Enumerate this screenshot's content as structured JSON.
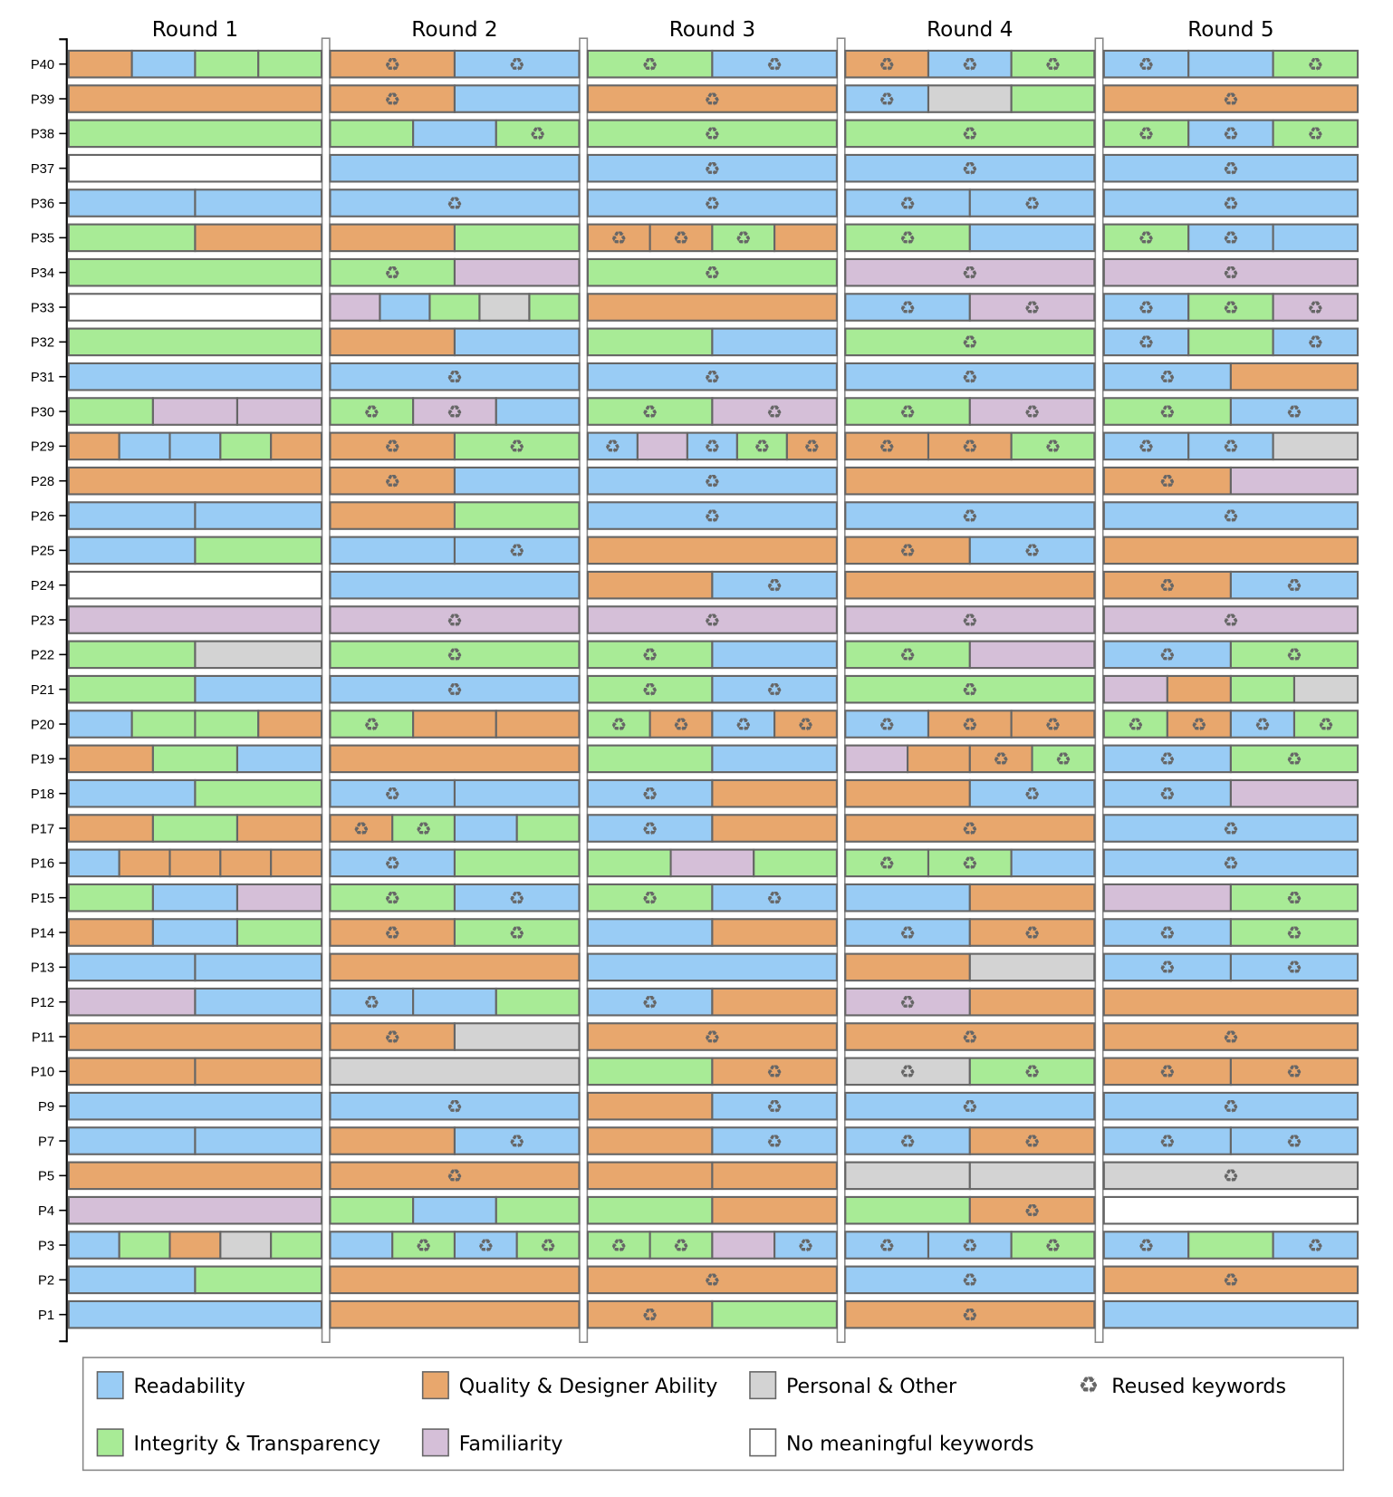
{
  "chart_data": {
    "type": "segmented-bar-grid",
    "rounds": [
      "Round 1",
      "Round 2",
      "Round 3",
      "Round 4",
      "Round 5"
    ],
    "categories": {
      "R": {
        "label": "Readability",
        "color": "#99ccf5"
      },
      "Q": {
        "label": "Quality & Designer Ability",
        "color": "#e8a76d"
      },
      "P": {
        "label": "Personal & Other",
        "color": "#d3d3d3"
      },
      "I": {
        "label": "Integrity & Transparency",
        "color": "#a8eb96"
      },
      "F": {
        "label": "Familiarity",
        "color": "#d5bfd8"
      },
      "N": {
        "label": "No meaningful keywords",
        "color": "#ffffff"
      }
    },
    "reused_label": "Reused keywords",
    "reused_icon": "recycle-icon",
    "legend_order": [
      "R",
      "Q",
      "P",
      "reused",
      "I",
      "F",
      "N"
    ],
    "participants": [
      {
        "id": "P40",
        "rounds": [
          [
            "Q",
            "R",
            "I",
            "I"
          ],
          [
            "Q*",
            "R*"
          ],
          [
            "I*",
            "R*"
          ],
          [
            "Q*",
            "R*",
            "I*"
          ],
          [
            "R*",
            "R",
            "I*"
          ]
        ]
      },
      {
        "id": "P39",
        "rounds": [
          [
            "Q"
          ],
          [
            "Q*",
            "R"
          ],
          [
            "Q*"
          ],
          [
            "R*",
            "P",
            "I"
          ],
          [
            "Q*"
          ]
        ]
      },
      {
        "id": "P38",
        "rounds": [
          [
            "I"
          ],
          [
            "I",
            "R",
            "I*"
          ],
          [
            "I*"
          ],
          [
            "I*"
          ],
          [
            "I*",
            "R*",
            "I*"
          ]
        ]
      },
      {
        "id": "P37",
        "rounds": [
          [
            "N"
          ],
          [
            "R"
          ],
          [
            "R*"
          ],
          [
            "R*"
          ],
          [
            "R*"
          ]
        ]
      },
      {
        "id": "P36",
        "rounds": [
          [
            "R",
            "R"
          ],
          [
            "R*"
          ],
          [
            "R*"
          ],
          [
            "R*",
            "R*"
          ],
          [
            "R*"
          ]
        ]
      },
      {
        "id": "P35",
        "rounds": [
          [
            "I",
            "Q"
          ],
          [
            "Q",
            "I"
          ],
          [
            "Q*",
            "Q*",
            "I*",
            "Q"
          ],
          [
            "I*",
            "R"
          ],
          [
            "I*",
            "R*",
            "R"
          ]
        ]
      },
      {
        "id": "P34",
        "rounds": [
          [
            "I"
          ],
          [
            "I*",
            "F"
          ],
          [
            "I*"
          ],
          [
            "F*"
          ],
          [
            "F*"
          ]
        ]
      },
      {
        "id": "P33",
        "rounds": [
          [
            "N"
          ],
          [
            "F",
            "R",
            "I",
            "P",
            "I"
          ],
          [
            "Q"
          ],
          [
            "R*",
            "F*"
          ],
          [
            "R*",
            "I*",
            "F*"
          ]
        ]
      },
      {
        "id": "P32",
        "rounds": [
          [
            "I"
          ],
          [
            "Q",
            "R"
          ],
          [
            "I",
            "R"
          ],
          [
            "I*"
          ],
          [
            "R*",
            "I",
            "R*"
          ]
        ]
      },
      {
        "id": "P31",
        "rounds": [
          [
            "R"
          ],
          [
            "R*"
          ],
          [
            "R*"
          ],
          [
            "R*"
          ],
          [
            "R*",
            "Q"
          ]
        ]
      },
      {
        "id": "P30",
        "rounds": [
          [
            "I",
            "F",
            "F"
          ],
          [
            "I*",
            "F*",
            "R"
          ],
          [
            "I*",
            "F*"
          ],
          [
            "I*",
            "F*"
          ],
          [
            "I*",
            "R*"
          ]
        ]
      },
      {
        "id": "P29",
        "rounds": [
          [
            "Q",
            "R",
            "R",
            "I",
            "Q"
          ],
          [
            "Q*",
            "I*"
          ],
          [
            "R*",
            "F",
            "R*",
            "I*",
            "Q*"
          ],
          [
            "Q*",
            "Q*",
            "I*"
          ],
          [
            "R*",
            "R*",
            "P"
          ]
        ]
      },
      {
        "id": "P28",
        "rounds": [
          [
            "Q"
          ],
          [
            "Q*",
            "R"
          ],
          [
            "R*"
          ],
          [
            "Q"
          ],
          [
            "Q*",
            "F"
          ]
        ]
      },
      {
        "id": "P26",
        "rounds": [
          [
            "R",
            "R"
          ],
          [
            "Q",
            "I"
          ],
          [
            "R*"
          ],
          [
            "R*"
          ],
          [
            "R*"
          ]
        ]
      },
      {
        "id": "P25",
        "rounds": [
          [
            "R",
            "I"
          ],
          [
            "R",
            "R*"
          ],
          [
            "Q"
          ],
          [
            "Q*",
            "R*"
          ],
          [
            "Q"
          ]
        ]
      },
      {
        "id": "P24",
        "rounds": [
          [
            "N"
          ],
          [
            "R"
          ],
          [
            "Q",
            "R*"
          ],
          [
            "Q"
          ],
          [
            "Q*",
            "R*"
          ]
        ]
      },
      {
        "id": "P23",
        "rounds": [
          [
            "F"
          ],
          [
            "F*"
          ],
          [
            "F*"
          ],
          [
            "F*"
          ],
          [
            "F*"
          ]
        ]
      },
      {
        "id": "P22",
        "rounds": [
          [
            "I",
            "P"
          ],
          [
            "I*"
          ],
          [
            "I*",
            "R"
          ],
          [
            "I*",
            "F"
          ],
          [
            "R*",
            "I*"
          ]
        ]
      },
      {
        "id": "P21",
        "rounds": [
          [
            "I",
            "R"
          ],
          [
            "R*"
          ],
          [
            "I*",
            "R*"
          ],
          [
            "I*"
          ],
          [
            "F",
            "Q",
            "I",
            "P"
          ]
        ]
      },
      {
        "id": "P20",
        "rounds": [
          [
            "R",
            "I",
            "I",
            "Q"
          ],
          [
            "I*",
            "Q",
            "Q"
          ],
          [
            "I*",
            "Q*",
            "R*",
            "Q*"
          ],
          [
            "R*",
            "Q*",
            "Q*"
          ],
          [
            "I*",
            "Q*",
            "R*",
            "I*"
          ]
        ]
      },
      {
        "id": "P19",
        "rounds": [
          [
            "Q",
            "I",
            "R"
          ],
          [
            "Q"
          ],
          [
            "I",
            "R"
          ],
          [
            "F",
            "Q",
            "Q*",
            "I*"
          ],
          [
            "R*",
            "I*"
          ]
        ]
      },
      {
        "id": "P18",
        "rounds": [
          [
            "R",
            "I"
          ],
          [
            "R*",
            "R"
          ],
          [
            "R*",
            "Q"
          ],
          [
            "Q",
            "R*"
          ],
          [
            "R*",
            "F"
          ]
        ]
      },
      {
        "id": "P17",
        "rounds": [
          [
            "Q",
            "I",
            "Q"
          ],
          [
            "Q*",
            "I*",
            "R",
            "I"
          ],
          [
            "R*",
            "Q"
          ],
          [
            "Q*"
          ],
          [
            "R*"
          ]
        ]
      },
      {
        "id": "P16",
        "rounds": [
          [
            "R",
            "Q",
            "Q",
            "Q",
            "Q"
          ],
          [
            "R*",
            "I"
          ],
          [
            "I",
            "F",
            "I"
          ],
          [
            "I*",
            "I*",
            "R"
          ],
          [
            "R*"
          ]
        ]
      },
      {
        "id": "P15",
        "rounds": [
          [
            "I",
            "R",
            "F"
          ],
          [
            "I*",
            "R*"
          ],
          [
            "I*",
            "R*"
          ],
          [
            "R",
            "Q"
          ],
          [
            "F",
            "I*"
          ]
        ]
      },
      {
        "id": "P14",
        "rounds": [
          [
            "Q",
            "R",
            "I"
          ],
          [
            "Q*",
            "I*"
          ],
          [
            "R",
            "Q"
          ],
          [
            "R*",
            "Q*"
          ],
          [
            "R*",
            "I*"
          ]
        ]
      },
      {
        "id": "P13",
        "rounds": [
          [
            "R",
            "R"
          ],
          [
            "Q"
          ],
          [
            "R"
          ],
          [
            "Q",
            "P"
          ],
          [
            "R*",
            "R*"
          ]
        ]
      },
      {
        "id": "P12",
        "rounds": [
          [
            "F",
            "R"
          ],
          [
            "R*",
            "R",
            "I"
          ],
          [
            "R*",
            "Q"
          ],
          [
            "F*",
            "Q"
          ],
          [
            "Q"
          ]
        ]
      },
      {
        "id": "P11",
        "rounds": [
          [
            "Q"
          ],
          [
            "Q*",
            "P"
          ],
          [
            "Q*"
          ],
          [
            "Q*"
          ],
          [
            "Q*"
          ]
        ]
      },
      {
        "id": "P10",
        "rounds": [
          [
            "Q",
            "Q"
          ],
          [
            "P"
          ],
          [
            "I",
            "Q*"
          ],
          [
            "P*",
            "I*"
          ],
          [
            "Q*",
            "Q*"
          ]
        ]
      },
      {
        "id": "P9",
        "rounds": [
          [
            "R"
          ],
          [
            "R*"
          ],
          [
            "Q",
            "R*"
          ],
          [
            "R*"
          ],
          [
            "R*"
          ]
        ]
      },
      {
        "id": "P7",
        "rounds": [
          [
            "R",
            "R"
          ],
          [
            "Q",
            "R*"
          ],
          [
            "Q",
            "R*"
          ],
          [
            "R*",
            "Q*"
          ],
          [
            "R*",
            "R*"
          ]
        ]
      },
      {
        "id": "P5",
        "rounds": [
          [
            "Q"
          ],
          [
            "Q*"
          ],
          [
            "Q",
            "Q"
          ],
          [
            "P",
            "P"
          ],
          [
            "P*"
          ]
        ]
      },
      {
        "id": "P4",
        "rounds": [
          [
            "F"
          ],
          [
            "I",
            "R",
            "I"
          ],
          [
            "I",
            "Q"
          ],
          [
            "I",
            "Q*"
          ],
          [
            "N"
          ]
        ]
      },
      {
        "id": "P3",
        "rounds": [
          [
            "R",
            "I",
            "Q",
            "P",
            "I"
          ],
          [
            "R",
            "I*",
            "R*",
            "I*"
          ],
          [
            "I*",
            "I*",
            "F",
            "R*"
          ],
          [
            "R*",
            "R*",
            "I*"
          ],
          [
            "R*",
            "I",
            "R*"
          ]
        ]
      },
      {
        "id": "P2",
        "rounds": [
          [
            "R",
            "I"
          ],
          [
            "Q"
          ],
          [
            "Q*"
          ],
          [
            "R*"
          ],
          [
            "Q*"
          ]
        ]
      },
      {
        "id": "P1",
        "rounds": [
          [
            "R"
          ],
          [
            "Q"
          ],
          [
            "Q*",
            "I"
          ],
          [
            "Q*"
          ],
          [
            "R"
          ]
        ]
      }
    ]
  }
}
